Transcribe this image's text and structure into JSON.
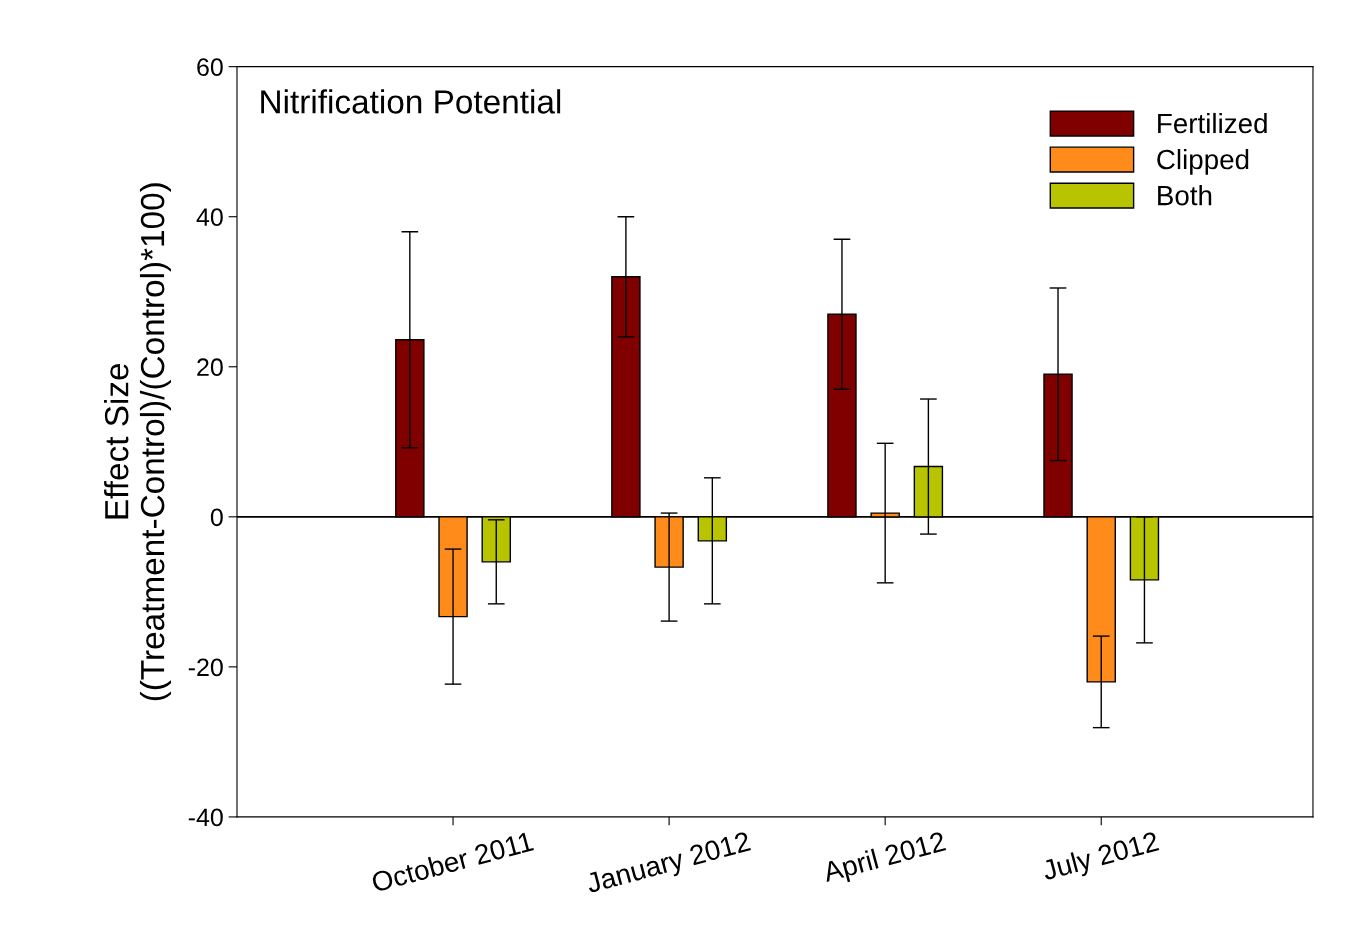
{
  "chart_data": {
    "type": "bar",
    "title": "Nitrification Potential",
    "ylabel": "Effect Size\n((Treatment-Control)/(Control)*100)",
    "categories": [
      "October 2011",
      "January 2012",
      "April 2012",
      "July 2012"
    ],
    "series": [
      {
        "name": "Fertilized",
        "color": "#800000",
        "values": [
          23.6,
          32,
          27,
          19
        ],
        "errors": [
          14.4,
          8,
          10,
          11.5
        ]
      },
      {
        "name": "Clipped",
        "color": "#ff8c1a",
        "values": [
          -13.3,
          -6.7,
          0.5,
          -22
        ],
        "errors": [
          9,
          7.2,
          9.3,
          6.1
        ]
      },
      {
        "name": "Both",
        "color": "#b8c400",
        "values": [
          -6,
          -3.2,
          6.7,
          -8.4
        ],
        "errors": [
          5.6,
          8.4,
          9,
          8.4
        ]
      }
    ],
    "ylim": [
      -40,
      60
    ],
    "yticks": [
      -40,
      -20,
      0,
      20,
      40,
      60
    ],
    "ref_lines": [
      {
        "axis": "y",
        "value": 0,
        "color": "#000000"
      }
    ],
    "legend": "top right",
    "grid": false
  }
}
